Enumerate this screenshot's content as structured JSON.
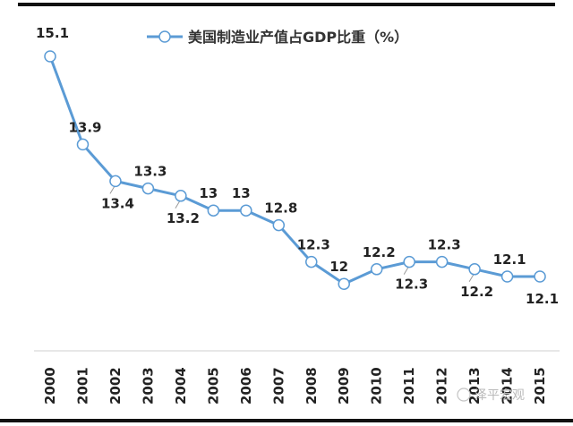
{
  "chart_data": {
    "type": "line",
    "categories": [
      "2000",
      "2001",
      "2002",
      "2003",
      "2004",
      "2005",
      "2006",
      "2007",
      "2008",
      "2009",
      "2010",
      "2011",
      "2012",
      "2013",
      "2014",
      "2015"
    ],
    "series": [
      {
        "name": "美国制造业产值占GDP比重（%）",
        "values": [
          15.1,
          13.9,
          13.4,
          13.3,
          13.2,
          13,
          13,
          12.8,
          12.3,
          12,
          12.2,
          12.3,
          12.3,
          12.2,
          12.1,
          12.1
        ]
      }
    ],
    "data_labels": [
      "15.1",
      "13.9",
      "13.4",
      "13.3",
      "13.2",
      "13",
      "13",
      "12.8",
      "12.3",
      "12",
      "12.2",
      "12.3",
      "12.3",
      "12.2",
      "12.1",
      "12.1"
    ],
    "title": "",
    "xlabel": "",
    "ylabel": "",
    "legend_position": "top",
    "grid": false,
    "line_color": "#5b9bd5"
  },
  "watermark": "泽平宏观"
}
